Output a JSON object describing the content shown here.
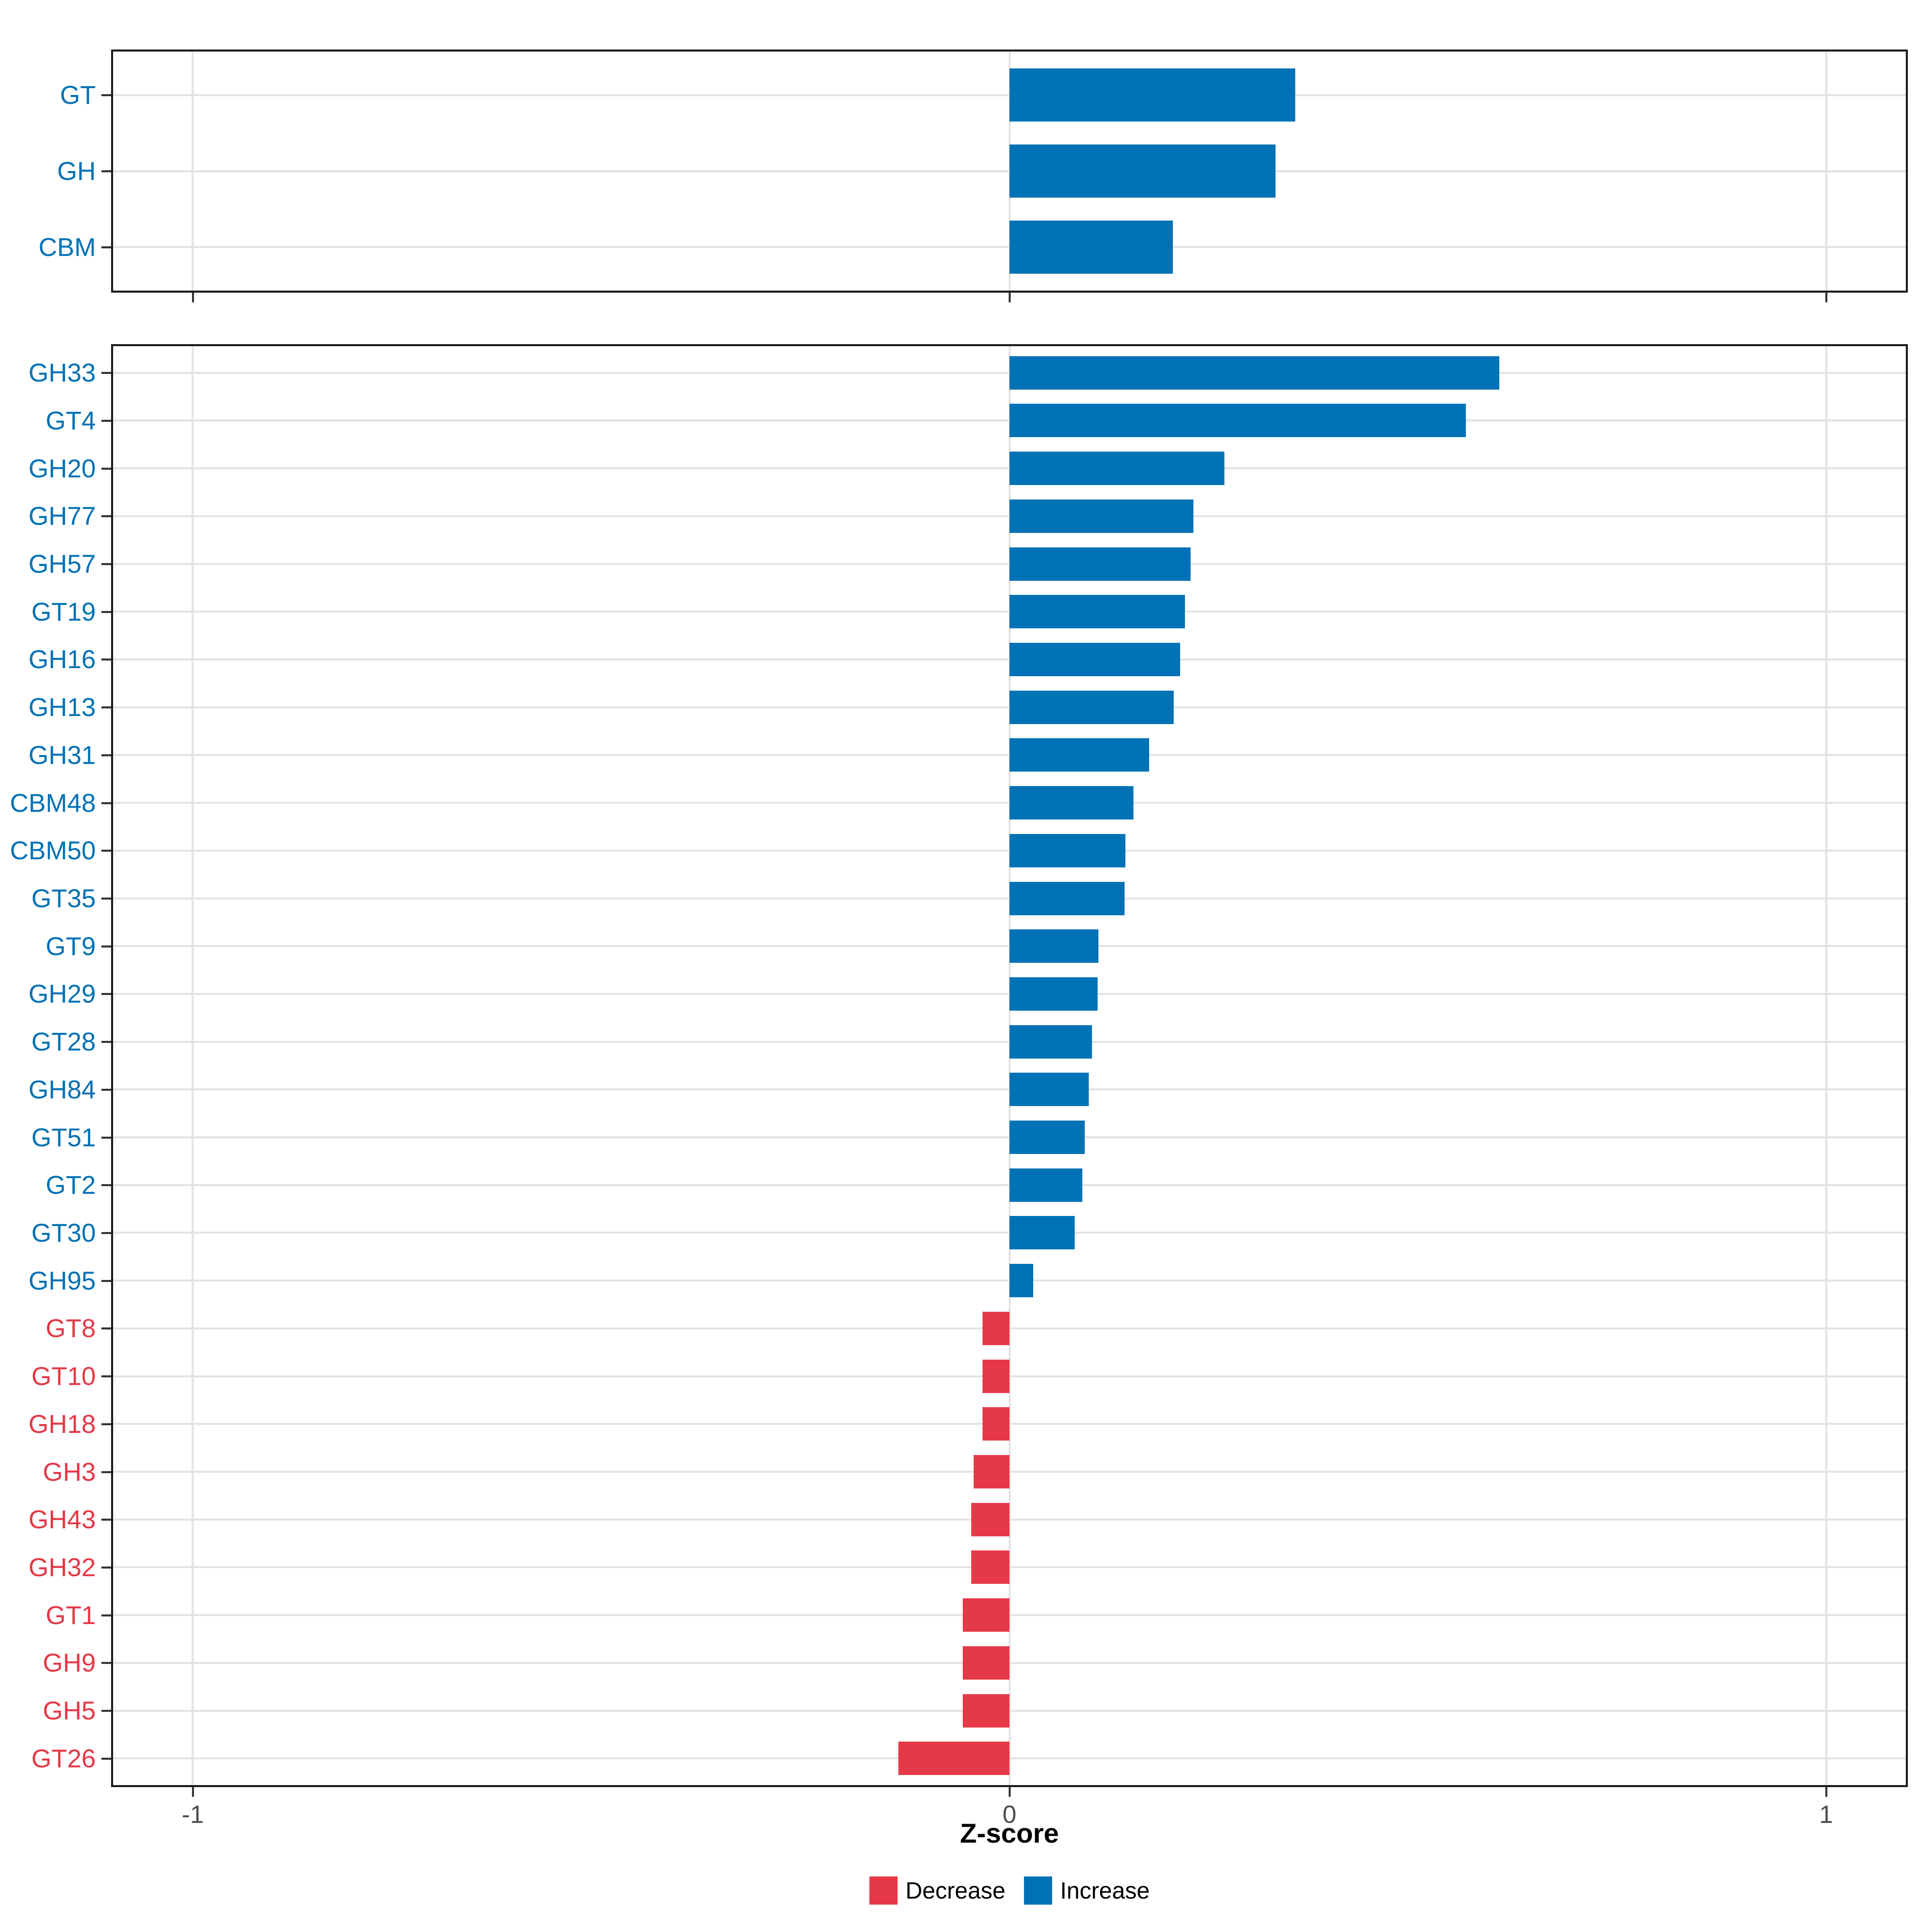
{
  "figure": {
    "background": "#FFFFFF",
    "x_axis": {
      "title": "Z-score",
      "tick_labels": [
        "-1",
        "0",
        "1"
      ],
      "tick_values": [
        -1,
        0,
        1
      ],
      "range": [
        -1.1,
        1.1
      ]
    },
    "legend": {
      "items": [
        {
          "label": "Decrease",
          "color": "#E53947"
        },
        {
          "label": "Increase",
          "color": "#0072B5"
        }
      ]
    }
  },
  "colors": {
    "increase": "#0072B5",
    "decrease": "#E53947",
    "grid": "#E3E3E3",
    "panel_border": "#1A1A1A",
    "axis_tick": "#333333",
    "tick_label_text": "#4D4D4D"
  },
  "chart_data": [
    {
      "type": "bar",
      "orientation": "horizontal",
      "panel": "cazyme-classes",
      "title": "",
      "xlabel": "Z-score",
      "ylabel": "",
      "xlim": [
        -1.1,
        1.1
      ],
      "grid": "major-only",
      "legend_position": "bottom",
      "categories": [
        "GT",
        "GH",
        "CBM"
      ],
      "values": [
        0.35,
        0.326,
        0.2
      ],
      "series_rule": "color by sign: positive = Increase (blue), negative = Decrease (red)"
    },
    {
      "type": "bar",
      "orientation": "horizontal",
      "panel": "cazyme-families",
      "title": "",
      "xlabel": "Z-score",
      "ylabel": "",
      "xlim": [
        -1.1,
        1.1
      ],
      "grid": "major-only",
      "legend_position": "bottom",
      "categories": [
        "GH33",
        "GT4",
        "GH20",
        "GH77",
        "GH57",
        "GT19",
        "GH16",
        "GH13",
        "GH31",
        "CBM48",
        "CBM50",
        "GT35",
        "GT9",
        "GH29",
        "GT28",
        "GH84",
        "GT51",
        "GT2",
        "GT30",
        "GH95",
        "GT8",
        "GT10",
        "GH18",
        "GH3",
        "GH43",
        "GH32",
        "GT1",
        "GH9",
        "GH5",
        "GT26"
      ],
      "values": [
        0.6,
        0.559,
        0.263,
        0.225,
        0.222,
        0.215,
        0.209,
        0.201,
        0.171,
        0.152,
        0.142,
        0.141,
        0.109,
        0.108,
        0.101,
        0.097,
        0.092,
        0.089,
        0.08,
        0.029,
        -0.033,
        -0.033,
        -0.033,
        -0.044,
        -0.047,
        -0.047,
        -0.057,
        -0.057,
        -0.057,
        -0.136
      ],
      "series_rule": "color by sign: positive = Increase (blue), negative = Decrease (red)"
    }
  ]
}
